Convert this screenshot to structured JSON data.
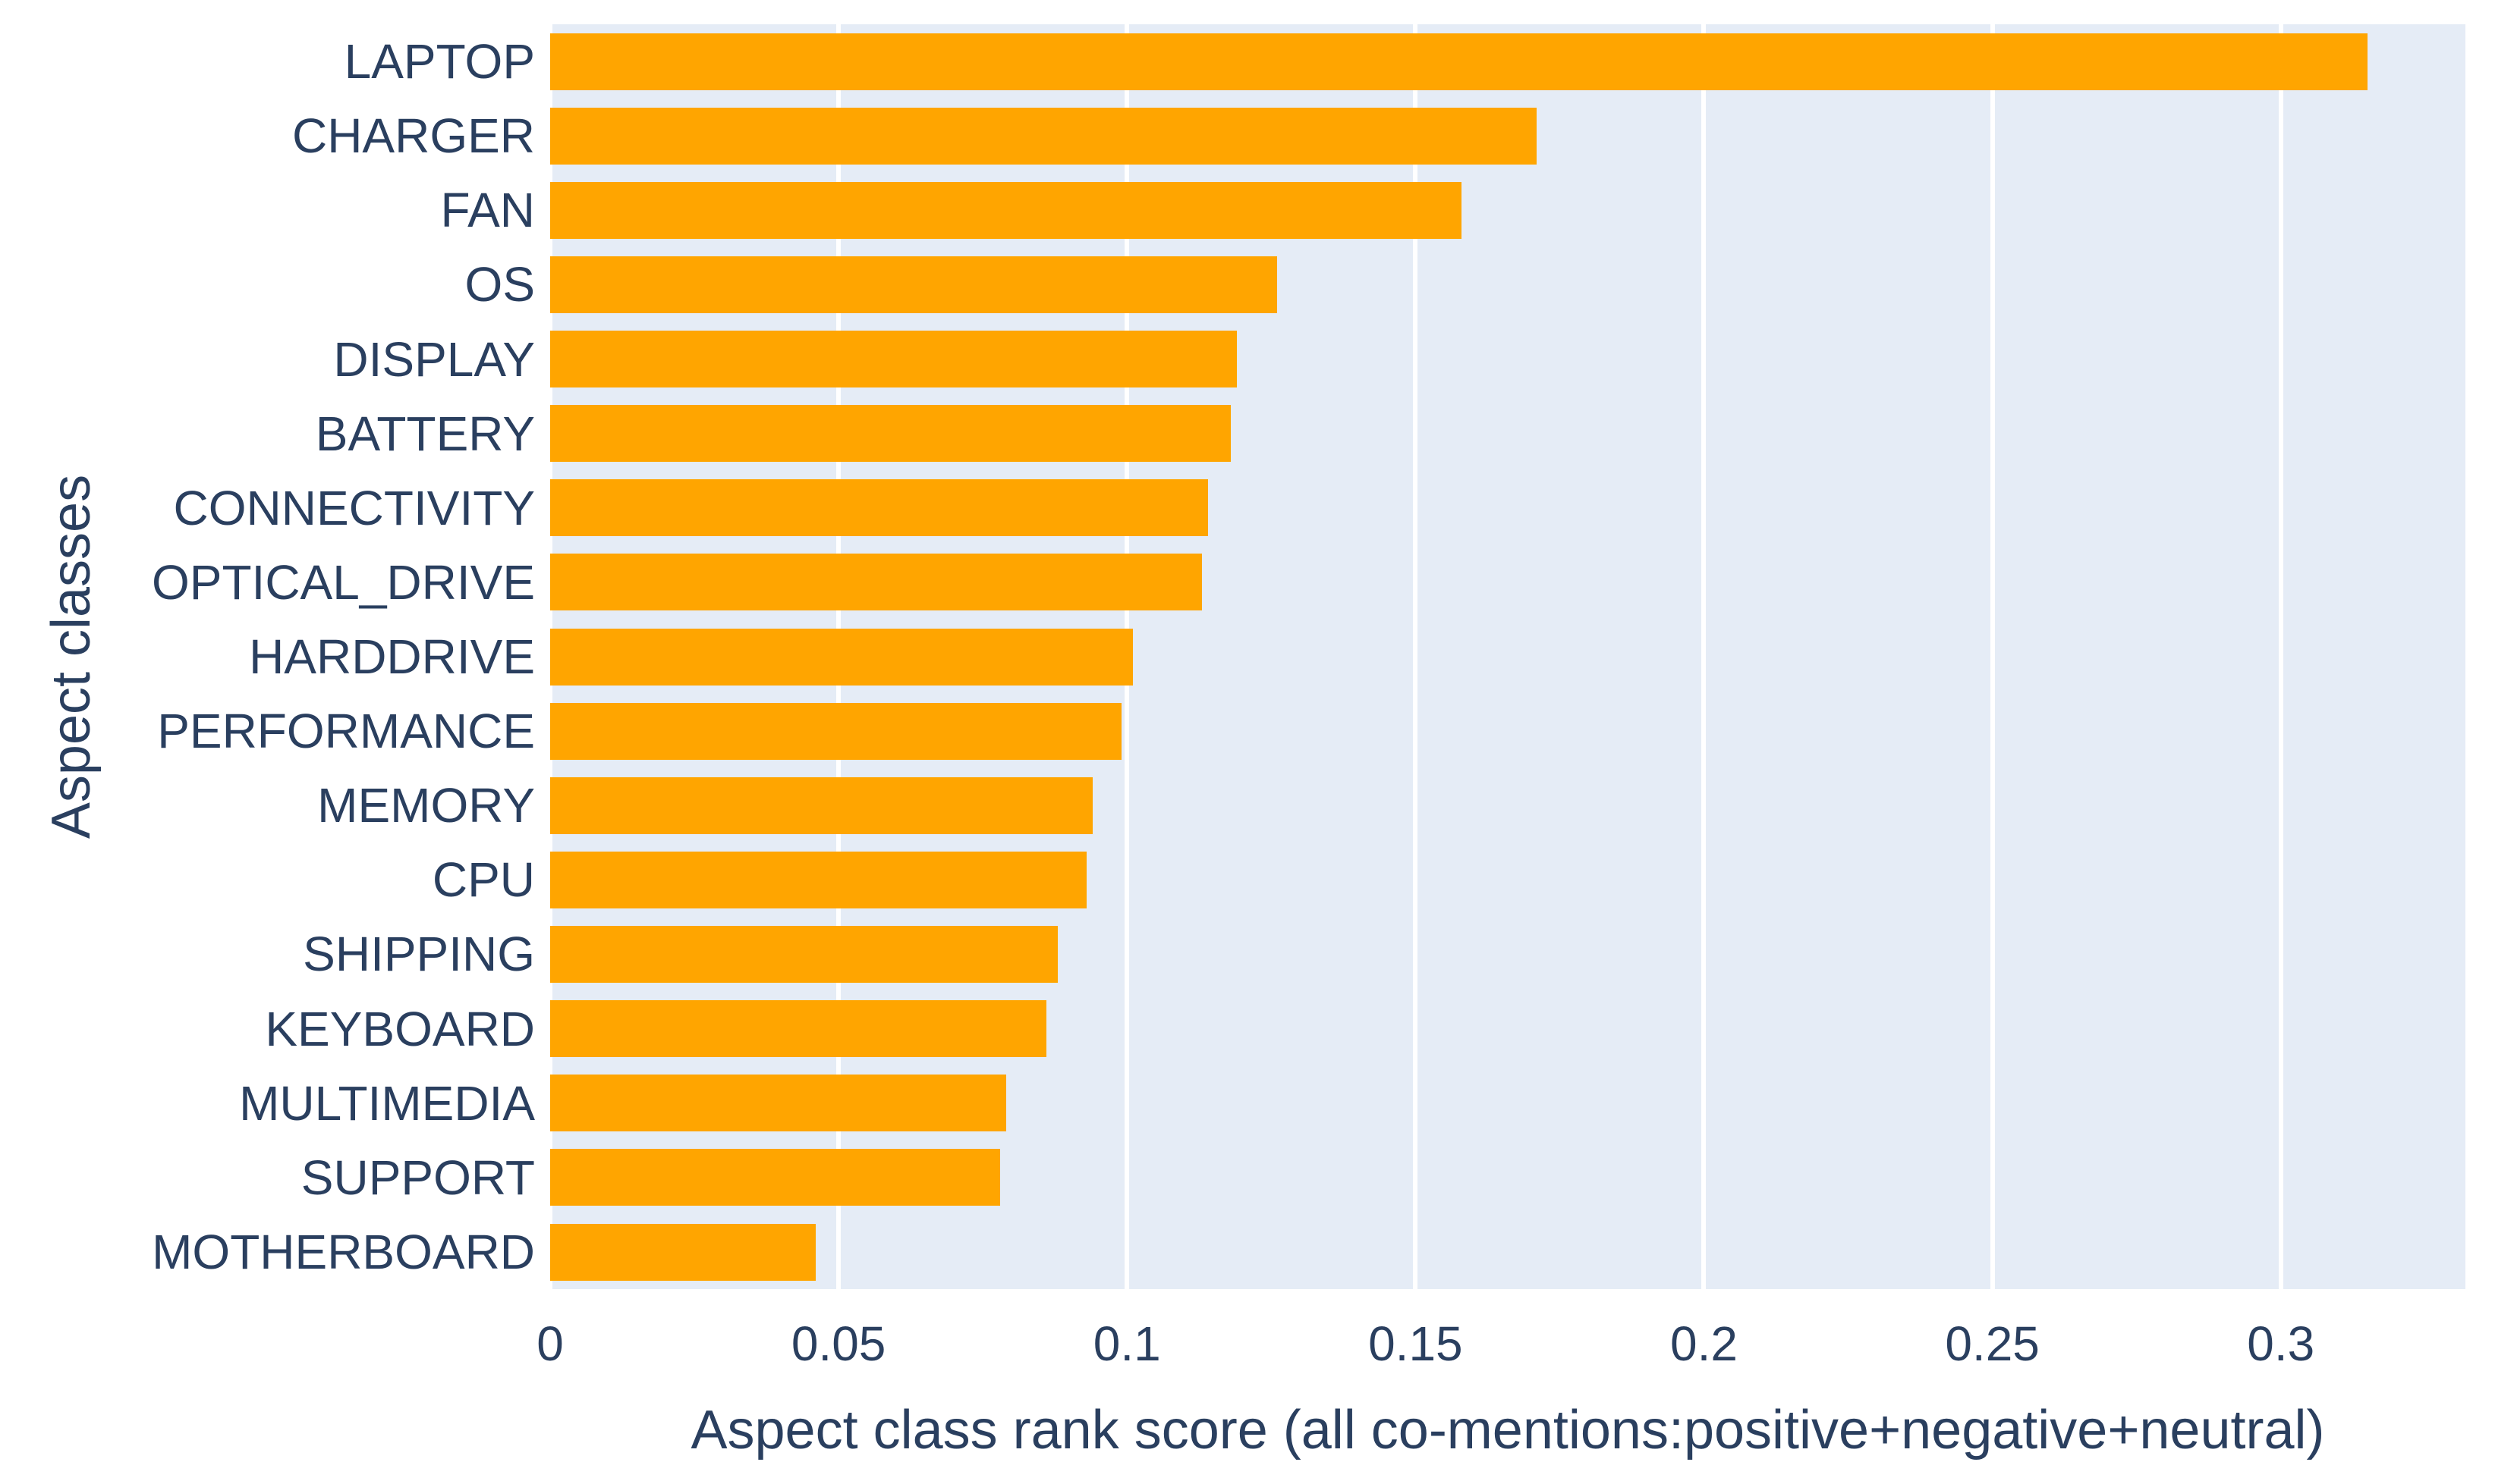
{
  "chart_data": {
    "type": "bar",
    "orientation": "horizontal",
    "title": "",
    "xlabel": "Aspect class rank score (all co-mentions:positive+negative+neutral)",
    "ylabel": "Aspect classes",
    "categories": [
      "LAPTOP",
      "CHARGER",
      "FAN",
      "OS",
      "DISPLAY",
      "BATTERY",
      "CONNECTIVITY",
      "OPTICAL_DRIVE",
      "HARDDRIVE",
      "PERFORMANCE",
      "MEMORY",
      "CPU",
      "SHIPPING",
      "KEYBOARD",
      "MULTIMEDIA",
      "SUPPORT",
      "MOTHERBOARD"
    ],
    "values": [
      0.315,
      0.171,
      0.158,
      0.126,
      0.119,
      0.118,
      0.114,
      0.113,
      0.101,
      0.099,
      0.094,
      0.093,
      0.088,
      0.086,
      0.079,
      0.078,
      0.046
    ],
    "xlim": [
      0,
      0.332
    ],
    "xticks": [
      0,
      0.05,
      0.1,
      0.15,
      0.2,
      0.25,
      0.3
    ],
    "xtick_labels": [
      "0",
      "0.05",
      "0.1",
      "0.15",
      "0.2",
      "0.25",
      "0.3"
    ],
    "grid": true,
    "legend_position": "none",
    "colors": {
      "bar": "#FFA500",
      "plot_background": "#E5ECF6",
      "gridline": "#FFFFFF",
      "text": "#2A3F5F",
      "page_background": "#FFFFFF"
    }
  }
}
